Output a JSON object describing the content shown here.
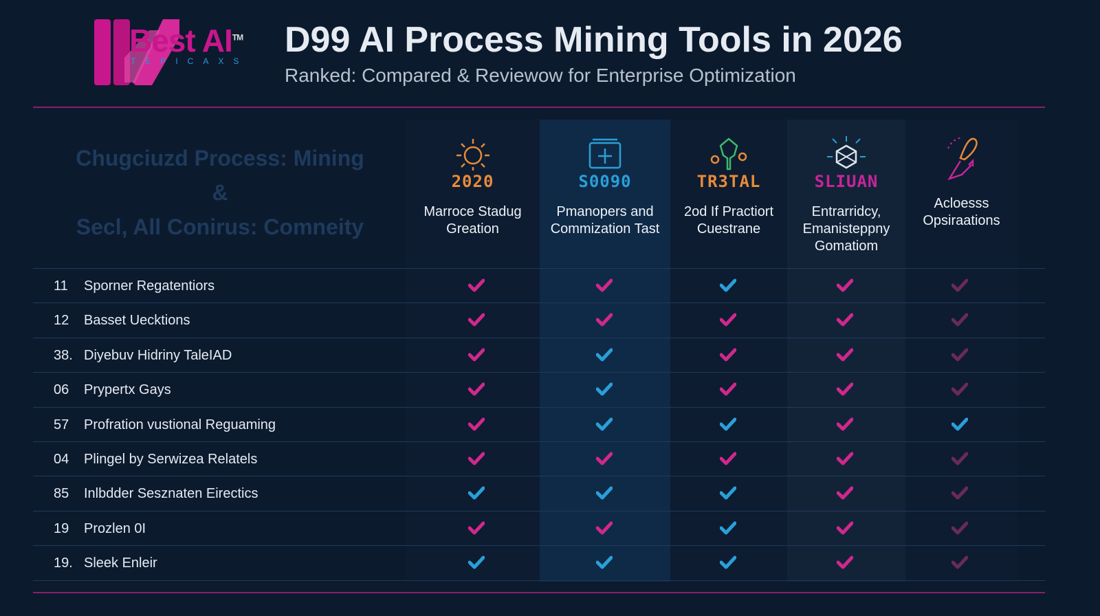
{
  "logo": {
    "brand": "Best AI",
    "tm": "TM",
    "tagline": "TEPICAXS"
  },
  "header": {
    "title": "D99 AI Process Mining Tools in 2026",
    "subtitle": "Ranked: Compared & Reviewow for Enterprise Optimization"
  },
  "table_caption": {
    "line1": "Chugciuzd Process: Mining",
    "line2": "&",
    "line3": "Secl, All Conirus: Comneity"
  },
  "colors": {
    "pink": "#d0288c",
    "blue": "#2a9fd8",
    "dim": "#6a2a5a",
    "accent_line": "#8a1f6a"
  },
  "columns": [
    {
      "icon": "sun-icon",
      "code": "2020",
      "code_color": "#e88a3a",
      "label": "Marroce Stadug Greation"
    },
    {
      "icon": "calendar-icon",
      "code": "S0090",
      "code_color": "#2a9fd8",
      "label": "Pmanopers and Commization Tast"
    },
    {
      "icon": "tree-icon",
      "code": "TR3TAL",
      "code_color": "#e88a3a",
      "label": "2od If Practiort Cuestrane"
    },
    {
      "icon": "cube-icon",
      "code": "SLIUAN",
      "code_color": "#c8249a",
      "label": "Entrarridcy, Emanisteppny Gomatiom"
    },
    {
      "icon": "rocket-icon",
      "code": "",
      "code_color": "#e88a3a",
      "label": "Acloesss Opsiraations"
    }
  ],
  "rows": [
    {
      "num": "11",
      "name": "Sporner Regatentiors",
      "checks": [
        "pink",
        "pink",
        "blue",
        "pink",
        "dim"
      ]
    },
    {
      "num": "12",
      "name": "Basset Uecktions",
      "checks": [
        "pink",
        "pink",
        "pink",
        "pink",
        "dim"
      ]
    },
    {
      "num": "38.",
      "name": "Diyebuv Hidriny TaleIAD",
      "checks": [
        "pink",
        "blue",
        "pink",
        "pink",
        "dim"
      ]
    },
    {
      "num": "06",
      "name": "Prypertx Gays",
      "checks": [
        "pink",
        "blue",
        "pink",
        "pink",
        "dim"
      ]
    },
    {
      "num": "57",
      "name": "Profration vustional Reguaming",
      "checks": [
        "pink",
        "blue",
        "blue",
        "pink",
        "blue"
      ]
    },
    {
      "num": "04",
      "name": "Plingel by Serwizea Relatels",
      "checks": [
        "pink",
        "pink",
        "pink",
        "pink",
        "dim"
      ]
    },
    {
      "num": "85",
      "name": "Inlbdder Sesznaten Eirectics",
      "checks": [
        "blue",
        "blue",
        "blue",
        "pink",
        "dim"
      ]
    },
    {
      "num": "19",
      "name": "Prozlen 0I",
      "checks": [
        "pink",
        "pink",
        "blue",
        "pink",
        "dim"
      ]
    },
    {
      "num": "19.",
      "name": "Sleek Enleir",
      "checks": [
        "blue",
        "blue",
        "blue",
        "pink",
        "dim"
      ]
    }
  ]
}
